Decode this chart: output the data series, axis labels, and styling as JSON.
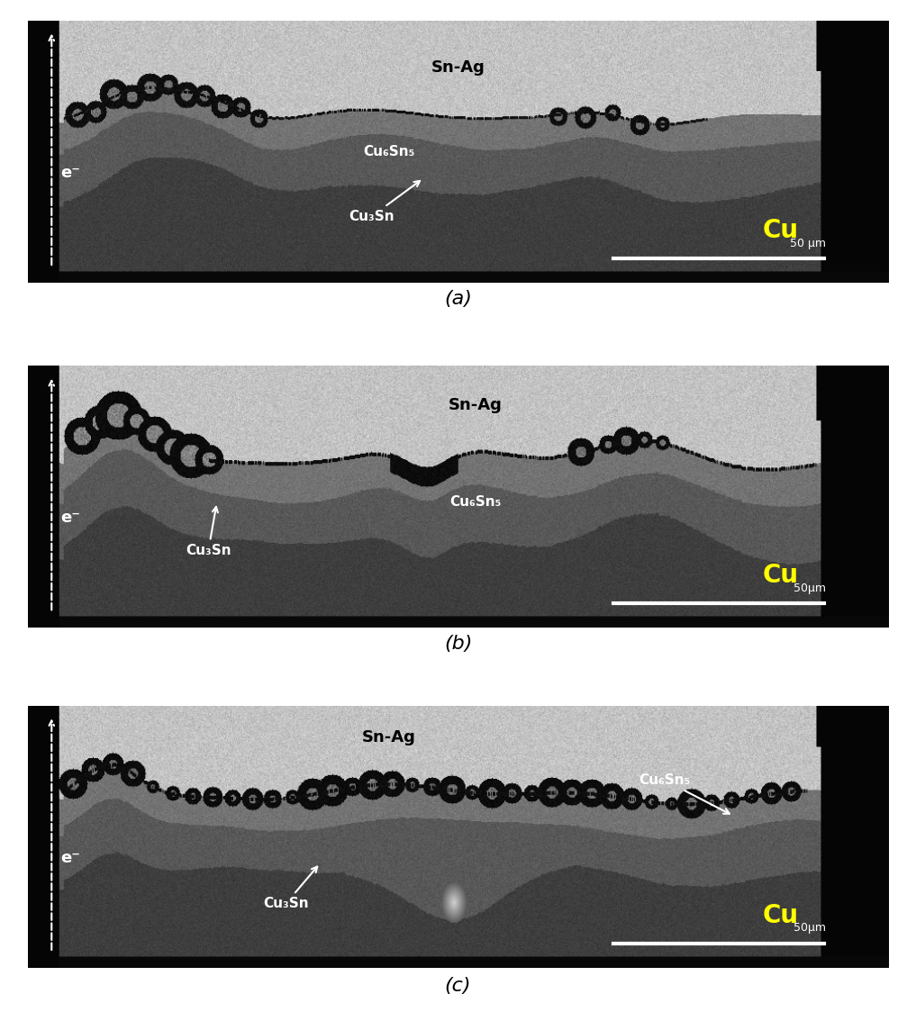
{
  "fig_width": 10.17,
  "fig_height": 11.44,
  "dpi": 100,
  "bg_color": "#ffffff",
  "panels": [
    {
      "label": "(a)",
      "snag_label": "Sn-Ag",
      "cu6sn5_label": "Cu₆Sn₅",
      "cu3sn_label": "Cu₃Sn",
      "cu_label": "Cu",
      "scalebar": "50 μm"
    },
    {
      "label": "(b)",
      "snag_label": "Sn-Ag",
      "cu6sn5_label": "Cu₆Sn₅",
      "cu3sn_label": "Cu₃Sn",
      "cu_label": "Cu",
      "scalebar": "50μm"
    },
    {
      "label": "(c)",
      "snag_label": "Sn-Ag",
      "cu6sn5_label": "Cu₆Sn₅",
      "cu3sn_label": "Cu₃Sn",
      "cu_label": "Cu",
      "scalebar": "50μm"
    }
  ],
  "snag_gray": 195,
  "cu6_gray": 115,
  "cu3_gray": 88,
  "cu_gray": 62,
  "imc_dark": 15,
  "imc_light": 140
}
